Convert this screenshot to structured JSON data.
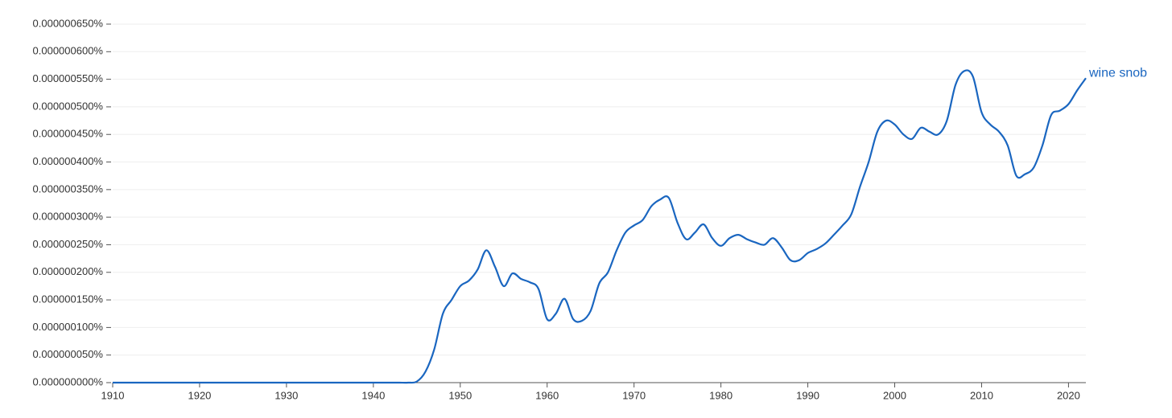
{
  "chart_data": {
    "type": "line",
    "x": [
      1910,
      1911,
      1912,
      1913,
      1914,
      1915,
      1916,
      1917,
      1918,
      1919,
      1920,
      1921,
      1922,
      1923,
      1924,
      1925,
      1926,
      1927,
      1928,
      1929,
      1930,
      1931,
      1932,
      1933,
      1934,
      1935,
      1936,
      1937,
      1938,
      1939,
      1940,
      1941,
      1942,
      1943,
      1944,
      1945,
      1946,
      1947,
      1948,
      1949,
      1950,
      1951,
      1952,
      1953,
      1954,
      1955,
      1956,
      1957,
      1958,
      1959,
      1960,
      1961,
      1962,
      1963,
      1964,
      1965,
      1966,
      1967,
      1968,
      1969,
      1970,
      1971,
      1972,
      1973,
      1974,
      1975,
      1976,
      1977,
      1978,
      1979,
      1980,
      1981,
      1982,
      1983,
      1984,
      1985,
      1986,
      1987,
      1988,
      1989,
      1990,
      1991,
      1992,
      1993,
      1994,
      1995,
      1996,
      1997,
      1998,
      1999,
      2000,
      2001,
      2002,
      2003,
      2004,
      2005,
      2006,
      2007,
      2008,
      2009,
      2010,
      2011,
      2012,
      2013,
      2014,
      2015,
      2016,
      2017,
      2018,
      2019,
      2020,
      2021,
      2022
    ],
    "series": [
      {
        "name": "wine snob",
        "color": "#1a66c0",
        "values": [
          0,
          0,
          0,
          0,
          0,
          0,
          0,
          0,
          0,
          0,
          0,
          0,
          0,
          0,
          0,
          0,
          0,
          0,
          0,
          0,
          0,
          0,
          0,
          0,
          0,
          0,
          0,
          0,
          0,
          0,
          0,
          0,
          0,
          0,
          0,
          2e-09,
          2e-08,
          6e-08,
          1.25e-07,
          1.5e-07,
          1.75e-07,
          1.85e-07,
          2.05e-07,
          2.4e-07,
          2.1e-07,
          1.75e-07,
          1.98e-07,
          1.88e-07,
          1.82e-07,
          1.7e-07,
          1.15e-07,
          1.25e-07,
          1.52e-07,
          1.15e-07,
          1.12e-07,
          1.3e-07,
          1.8e-07,
          2e-07,
          2.4e-07,
          2.72e-07,
          2.85e-07,
          2.95e-07,
          3.2e-07,
          3.32e-07,
          3.35e-07,
          2.9e-07,
          2.6e-07,
          2.72e-07,
          2.87e-07,
          2.62e-07,
          2.48e-07,
          2.62e-07,
          2.68e-07,
          2.6e-07,
          2.54e-07,
          2.5e-07,
          2.62e-07,
          2.45e-07,
          2.22e-07,
          2.22e-07,
          2.35e-07,
          2.42e-07,
          2.52e-07,
          2.68e-07,
          2.85e-07,
          3.05e-07,
          3.55e-07,
          4e-07,
          4.55e-07,
          4.75e-07,
          4.68e-07,
          4.5e-07,
          4.42e-07,
          4.62e-07,
          4.55e-07,
          4.5e-07,
          4.75e-07,
          5.4e-07,
          5.65e-07,
          5.55e-07,
          4.9e-07,
          4.68e-07,
          4.55e-07,
          4.3e-07,
          3.75e-07,
          3.78e-07,
          3.9e-07,
          4.3e-07,
          4.85e-07,
          4.93e-07,
          5.05e-07,
          5.3e-07,
          5.52e-07
        ]
      }
    ],
    "xlim": [
      1910,
      2022
    ],
    "xticks": [
      1910,
      1920,
      1930,
      1940,
      1950,
      1960,
      1970,
      1980,
      1990,
      2000,
      2010,
      2020
    ],
    "ylim": [
      0,
      6.5e-07
    ],
    "yticks": [
      {
        "value": 0,
        "label": "0.000000000%"
      },
      {
        "value": 5e-08,
        "label": "0.000000050%"
      },
      {
        "value": 1e-07,
        "label": "0.000000100%"
      },
      {
        "value": 1.5e-07,
        "label": "0.000000150%"
      },
      {
        "value": 2e-07,
        "label": "0.000000200%"
      },
      {
        "value": 2.5e-07,
        "label": "0.000000250%"
      },
      {
        "value": 3e-07,
        "label": "0.000000300%"
      },
      {
        "value": 3.5e-07,
        "label": "0.000000350%"
      },
      {
        "value": 4e-07,
        "label": "0.000000400%"
      },
      {
        "value": 4.5e-07,
        "label": "0.000000450%"
      },
      {
        "value": 5e-07,
        "label": "0.000000500%"
      },
      {
        "value": 5.5e-07,
        "label": "0.000000550%"
      },
      {
        "value": 6e-07,
        "label": "0.000000600%"
      },
      {
        "value": 6.5e-07,
        "label": "0.000000650%"
      }
    ],
    "grid": true
  }
}
